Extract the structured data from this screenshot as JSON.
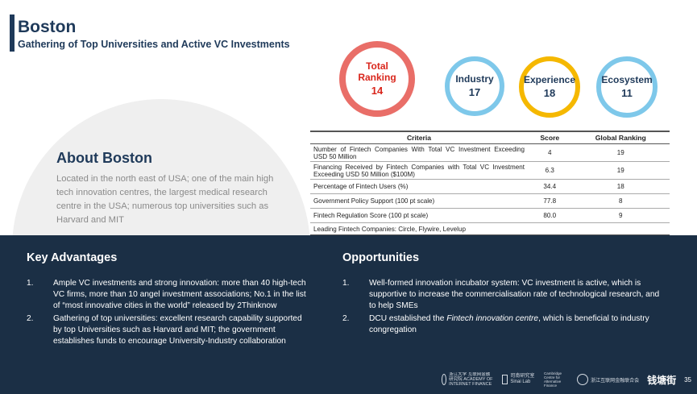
{
  "header": {
    "title": "Boston",
    "subtitle": "Gathering of Top Universities and Active VC Investments"
  },
  "about": {
    "title": "About Boston",
    "text": "Located in the north east of USA; one of the main high tech innovation centres, the largest medical research centre in the USA; numerous top universities such as Harvard and MIT"
  },
  "rankings": {
    "total": {
      "label_line1": "Total",
      "label_line2": "Ranking",
      "value": "14",
      "color": "#d9261c"
    },
    "industry": {
      "label": "Industry",
      "value": "17",
      "color": "#7ec8ea"
    },
    "experience": {
      "label": "Experience",
      "value": "18",
      "color": "#f5b800"
    },
    "ecosystem": {
      "label": "Ecosystem",
      "value": "11",
      "color": "#7ec8ea"
    }
  },
  "table": {
    "headers": {
      "criteria": "Criteria",
      "score": "Score",
      "global": "Global Ranking"
    },
    "rows": [
      {
        "criteria": "Number of Fintech Companies With Total VC Investment Exceeding USD 50 Million",
        "score": "4",
        "global": "19"
      },
      {
        "criteria": "Financing Received by Fintech Companies with Total VC Investment Exceeding USD 50 Million ($100M)",
        "score": "6.3",
        "global": "19"
      },
      {
        "criteria": "Percentage of Fintech Users (%)",
        "score": "34.4",
        "global": "18"
      },
      {
        "criteria": "Government Policy Support (100 pt scale)",
        "score": "77.8",
        "global": "8"
      },
      {
        "criteria": "Fintech Regulation Score (100 pt scale)",
        "score": "80.0",
        "global": "9"
      }
    ],
    "footer": "Leading Fintech Companies: Circle, Flywire, Levelup"
  },
  "advantages": {
    "title": "Key Advantages",
    "items": [
      {
        "num": "1.",
        "text": "Ample VC investments and strong innovation: more than 40 high-tech VC firms, more than 10 angel investment associations; No.1 in the list of “most innovative cities in the world” released by 2Thinknow"
      },
      {
        "num": "2.",
        "text": "Gathering of top universities: excellent research capability supported by top Universities such as Harvard and MIT; the government establishes funds to encourage University-Industry collaboration"
      }
    ]
  },
  "opportunities": {
    "title": "Opportunities",
    "items": [
      {
        "num": "1.",
        "text": "Well-formed innovation incubator system: VC investment is active, which is supportive to increase the commercialisation rate of technological research, and to help SMEs"
      },
      {
        "num": "2.",
        "text_before": "DCU established the ",
        "text_italic": "Fintech innovation centre",
        "text_after": ", which is beneficial to industry congregation"
      }
    ]
  },
  "footer": {
    "logo1": "浙江大学 互联网金融研究院 ACADEMY OF INTERNET FINANCE",
    "logo2": "司南研究室 Sinai Lab",
    "logo3": "Cambridge Centre for Alternative Finance",
    "logo4": "浙江互联网金融联合会",
    "logo5": "钱塘街",
    "page": "35"
  }
}
